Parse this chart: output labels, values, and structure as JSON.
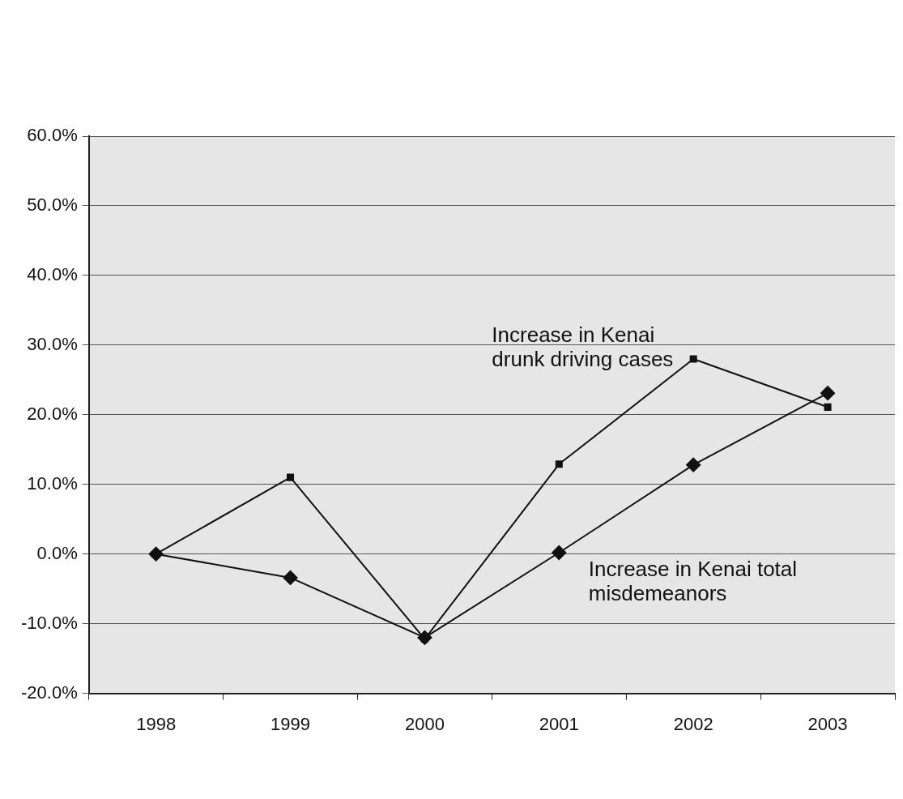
{
  "chart_data": {
    "type": "line",
    "categories": [
      "1998",
      "1999",
      "2000",
      "2001",
      "2002",
      "2003"
    ],
    "series": [
      {
        "name": "Increase in Kenai drunk driving cases",
        "color": "#111111",
        "marker": "square",
        "values": [
          0,
          11.0,
          -12.2,
          12.9,
          28.0,
          21.1
        ]
      },
      {
        "name": "Increase in Kenai total misdemeanors",
        "color": "#111111",
        "marker": "diamond",
        "values": [
          0,
          -3.4,
          -12.0,
          0.2,
          12.8,
          23.1
        ]
      }
    ],
    "ylim": [
      -20,
      60
    ],
    "yticks": [
      {
        "value": -20,
        "label": "-20.0%"
      },
      {
        "value": -10,
        "label": "-10.0%"
      },
      {
        "value": 0,
        "label": "0.0%"
      },
      {
        "value": 10,
        "label": "10.0%"
      },
      {
        "value": 20,
        "label": "20.0%"
      },
      {
        "value": 30,
        "label": "30.0%"
      },
      {
        "value": 40,
        "label": "40.0%"
      },
      {
        "value": 50,
        "label": "50.0%"
      },
      {
        "value": 60,
        "label": "60.0%"
      }
    ],
    "grid": "y",
    "line_style": "solid"
  }
}
